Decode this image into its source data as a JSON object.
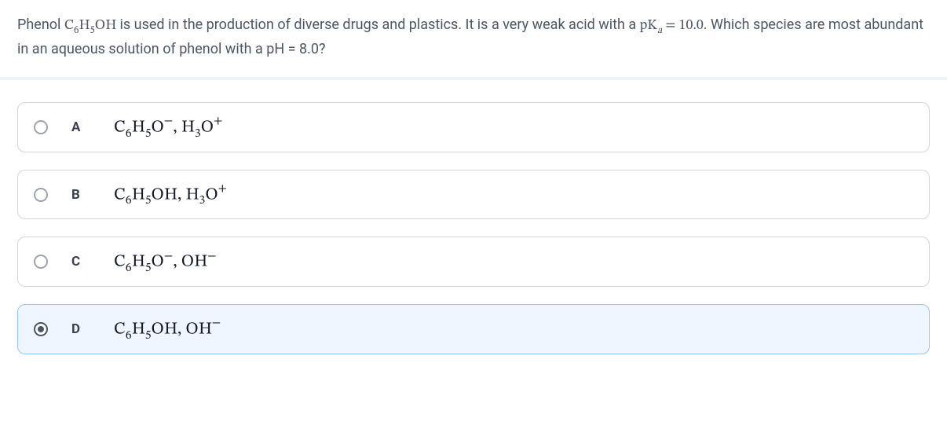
{
  "question": {
    "pre": "Phenol ",
    "formula_html": "C<span class=\"sub\">6</span>H<span class=\"sub\">5</span>OH",
    "mid1": " is used in the production of diverse drugs and plastics. It is a very weak acid with a ",
    "pka_html": "pK<span class=\"sub ital\">a</span> = 10.0",
    "mid2": ". Which species are most abundant in an aqueous solution of phenol with a pH = 8.0?"
  },
  "options": [
    {
      "letter": "A",
      "selected": false,
      "answer_html": "C<span class=\"sub\">6</span>H<span class=\"sub\">5</span>O<span class=\"sup\">−</span>, H<span class=\"sub\">3</span>O<span class=\"sup\">+</span>"
    },
    {
      "letter": "B",
      "selected": false,
      "answer_html": "C<span class=\"sub\">6</span>H<span class=\"sub\">5</span>OH, H<span class=\"sub\">3</span>O<span class=\"sup\">+</span>"
    },
    {
      "letter": "C",
      "selected": false,
      "answer_html": "C<span class=\"sub\">6</span>H<span class=\"sub\">5</span>O<span class=\"sup\">−</span>, OH<span class=\"sup\">−</span>"
    },
    {
      "letter": "D",
      "selected": true,
      "answer_html": "C<span class=\"sub\">6</span>H<span class=\"sub\">5</span>OH, OH<span class=\"sup\">−</span>"
    }
  ],
  "style": {
    "selected_bg": "#eff6ff",
    "selected_border": "#93c5fd",
    "option_border": "#d1d5db",
    "text_color": "#374151"
  }
}
